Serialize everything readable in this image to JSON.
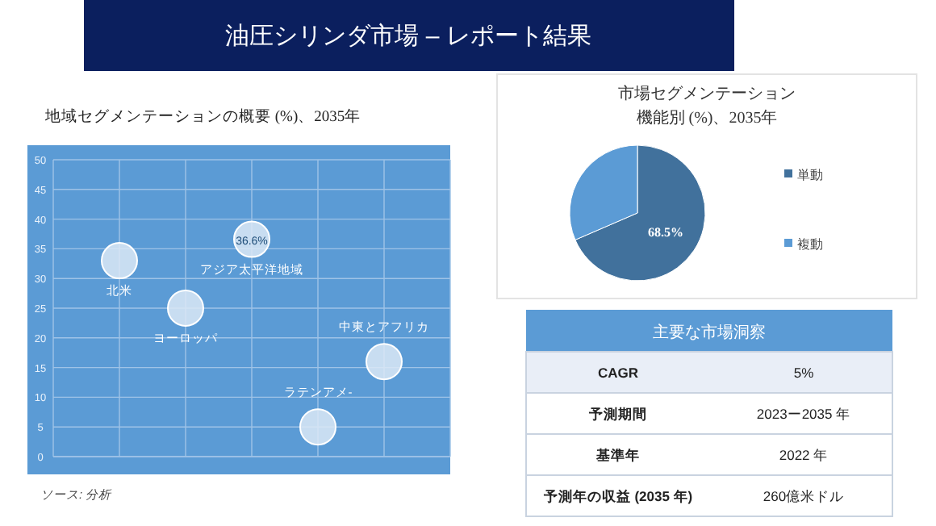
{
  "chart_data": [
    {
      "type": "other",
      "title": "油圧シリンダ市場 – レポート結果"
    },
    {
      "type": "bubble",
      "title": "地域セグメンテーションの概要 (%)、2035年",
      "categories": [
        "北米",
        "ヨーロッパ",
        "アジア太平洋地域",
        "ラテンアメ-",
        "中東とアフリカ"
      ],
      "values": [
        33,
        25,
        36.6,
        5,
        16
      ],
      "sizes": [
        1,
        1,
        1,
        1,
        1
      ],
      "value_labels": [
        null,
        null,
        "36.6%",
        null,
        null
      ],
      "color": "#dce9f6",
      "ylim": [
        0,
        50
      ],
      "yticks": [
        0,
        5,
        10,
        15,
        20,
        25,
        30,
        35,
        40,
        45,
        50
      ],
      "grid": true,
      "tick_labels": "y",
      "annotations": [
        "ソース: 分析"
      ]
    },
    {
      "type": "pie",
      "title": "市場セグメンテーション機能別 (%)、2035年",
      "categories": [
        "単動",
        "複動"
      ],
      "values": [
        68.5,
        31.5
      ],
      "colors": [
        "#41719c",
        "#5b9bd5"
      ],
      "value_labels": [
        "68.5%",
        null
      ],
      "legend": "right"
    },
    {
      "type": "other",
      "title": "主要な市場洞察",
      "annotations": [
        "CAGR",
        "5%",
        "予測期間",
        "2023ー2035 年",
        "基準年",
        "2022 年",
        "予測年の収益 (2035 年)",
        "260億米ドル"
      ]
    }
  ]
}
